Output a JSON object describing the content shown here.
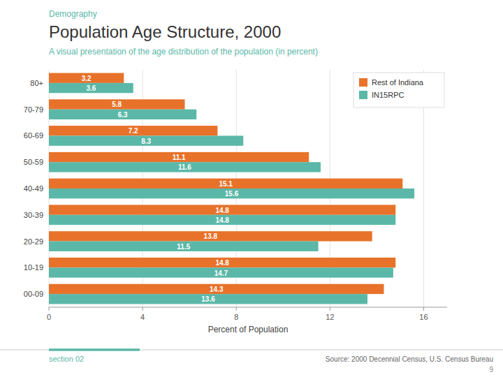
{
  "chart_data": {
    "type": "bar",
    "orientation": "horizontal",
    "title": "Population Age Structure, 2000",
    "subtitle": "A visual presentation of the age distribution of the population (in percent)",
    "annotations": [
      "Demography",
      "section 02",
      "Source: 2000 Decennial Census, U.S. Census Bureau",
      "9"
    ],
    "x_label": "Percent of Population",
    "categories": [
      "80+",
      "70-79",
      "60-69",
      "50-59",
      "40-49",
      "30-39",
      "20-29",
      "10-19",
      "00-09"
    ],
    "series": [
      {
        "name": "Rest of Indiana",
        "color": "#E8722A",
        "values": [
          3.2,
          5.8,
          7.2,
          11.1,
          15.1,
          14.8,
          13.8,
          14.8,
          14.3
        ]
      },
      {
        "name": "IN15RPC",
        "color": "#5BB8A8",
        "values": [
          3.6,
          6.3,
          8.3,
          11.6,
          15.6,
          14.8,
          11.5,
          14.7,
          13.6
        ]
      }
    ],
    "xlim": [
      0,
      17
    ],
    "xticks": [
      0,
      4,
      8,
      12,
      16
    ],
    "grid": true,
    "legend": "upper right",
    "data_labels": true
  }
}
